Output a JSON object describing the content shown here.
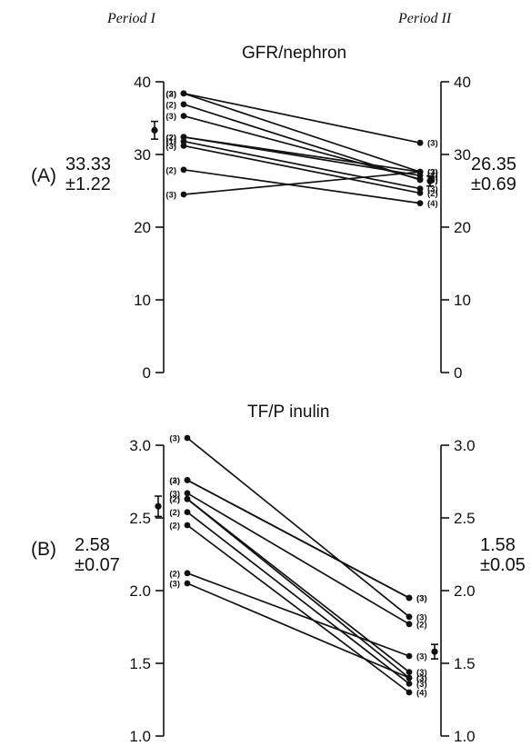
{
  "header": {
    "period_left": "Period I",
    "period_right": "Period II"
  },
  "chart_data": [
    {
      "type": "line",
      "panel": "(A)",
      "title": "GFR/nephron",
      "x": [
        "Period I",
        "Period II"
      ],
      "ylim": [
        0,
        40
      ],
      "yticks": [
        "0",
        "10",
        "20",
        "30",
        "40"
      ],
      "mean_left": "33.33",
      "sem_left": "±1.22",
      "mean_right": "26.35",
      "sem_right": "±0.69",
      "mean_left_value": 33.33,
      "sem_left_value": 1.22,
      "mean_right_value": 26.35,
      "sem_right_value": 0.69,
      "series": [
        {
          "values": [
            38.4,
            31.6
          ],
          "n_left": "(3)",
          "n_right": "(3)"
        },
        {
          "values": [
            38.4,
            27.6
          ],
          "n_left": "(2)",
          "n_right": "(3)"
        },
        {
          "values": [
            36.9,
            26.5
          ],
          "n_left": "(2)",
          "n_right": "(3)"
        },
        {
          "values": [
            35.3,
            26.6
          ],
          "n_left": "(3)",
          "n_right": "(3)"
        },
        {
          "values": [
            32.4,
            27.1
          ],
          "n_left": "(2)",
          "n_right": "(3)"
        },
        {
          "values": [
            32.4,
            27.6
          ],
          "n_left": "(2)",
          "n_right": "(3)"
        },
        {
          "values": [
            31.8,
            25.3
          ],
          "n_left": "(1)",
          "n_right": "(3)"
        },
        {
          "values": [
            31.2,
            24.7
          ],
          "n_left": "(3)",
          "n_right": "(2)"
        },
        {
          "values": [
            27.9,
            23.3
          ],
          "n_left": "(2)",
          "n_right": "(4)"
        },
        {
          "values": [
            24.5,
            27.6
          ],
          "n_left": "(3)",
          "n_right": "(3)"
        }
      ]
    },
    {
      "type": "line",
      "panel": "(B)",
      "title": "TF/P  inulin",
      "x": [
        "Period I",
        "Period II"
      ],
      "ylim": [
        1.0,
        3.0
      ],
      "yticks": [
        "1.0",
        "1.5",
        "2.0",
        "2.5",
        "3.0"
      ],
      "mean_left": "2.58",
      "sem_left": "±0.07",
      "mean_right": "1.58",
      "sem_right": "±0.05",
      "mean_left_value": 2.58,
      "sem_left_value": 0.07,
      "mean_right_value": 1.58,
      "sem_right_value": 0.05,
      "series": [
        {
          "values": [
            3.05,
            1.82
          ],
          "n_left": "(3)",
          "n_right": "(3)"
        },
        {
          "values": [
            2.76,
            1.95
          ],
          "n_left": "(2)",
          "n_right": "(3)"
        },
        {
          "values": [
            2.76,
            1.95
          ],
          "n_left": "(3)",
          "n_right": "(3)"
        },
        {
          "values": [
            2.67,
            1.77
          ],
          "n_left": "(3)",
          "n_right": "(2)"
        },
        {
          "values": [
            2.63,
            1.4
          ],
          "n_left": "(2)",
          "n_right": "(3)"
        },
        {
          "values": [
            2.63,
            1.44
          ],
          "n_left": "(2)",
          "n_right": "(3)"
        },
        {
          "values": [
            2.54,
            1.36
          ],
          "n_left": "(2)",
          "n_right": "(3)"
        },
        {
          "values": [
            2.45,
            1.3
          ],
          "n_left": "(2)",
          "n_right": "(4)"
        },
        {
          "values": [
            2.12,
            1.55
          ],
          "n_left": "(2)",
          "n_right": "(3)"
        },
        {
          "values": [
            2.05,
            1.4
          ],
          "n_left": "(3)",
          "n_right": "(3)"
        }
      ]
    }
  ]
}
